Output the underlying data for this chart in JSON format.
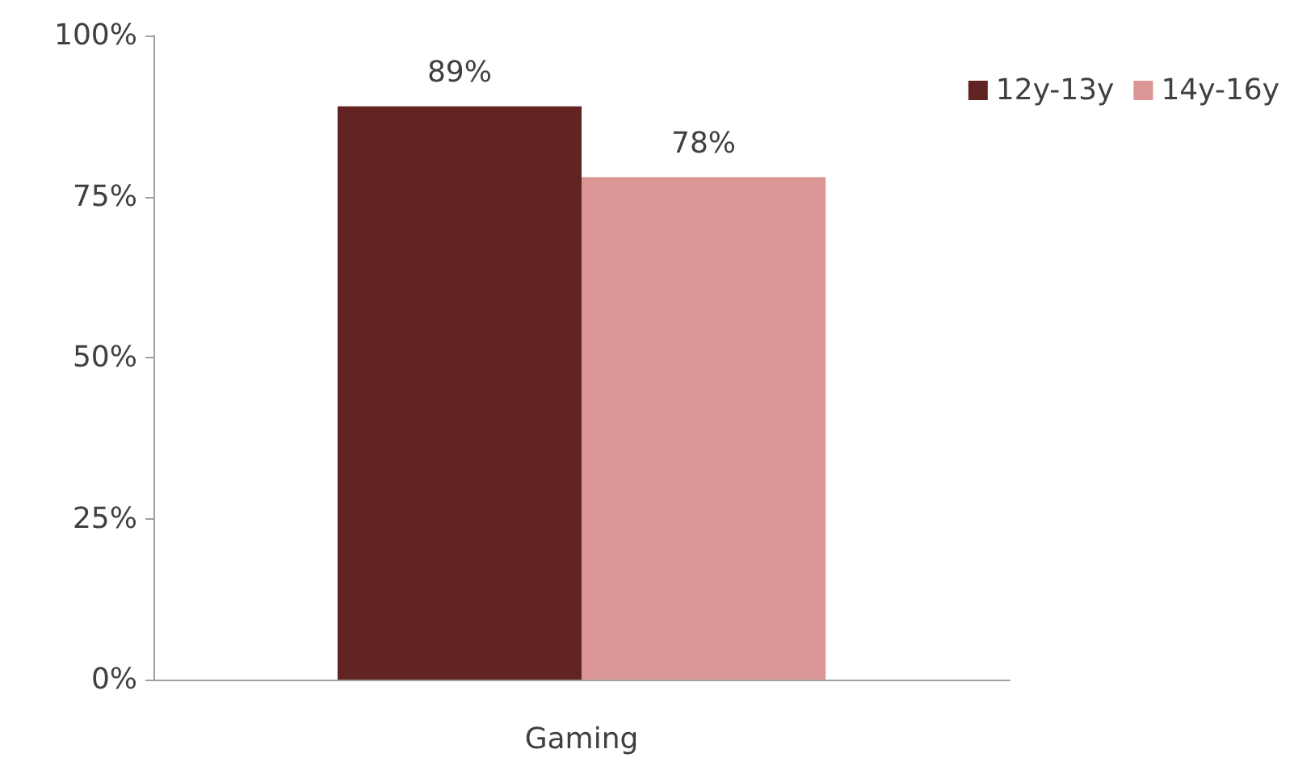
{
  "chart_data": {
    "type": "bar",
    "categories": [
      "Gaming"
    ],
    "series": [
      {
        "name": "12y-13y",
        "color": "#622423",
        "values": [
          89
        ],
        "value_labels": [
          "89%"
        ]
      },
      {
        "name": "14y-16y",
        "color": "#d99694",
        "values": [
          78
        ],
        "value_labels": [
          "78%"
        ]
      }
    ],
    "ylim": [
      0,
      100
    ],
    "yticks": [
      {
        "value": 0,
        "label": "0%"
      },
      {
        "value": 25,
        "label": "25%"
      },
      {
        "value": 50,
        "label": "50%"
      },
      {
        "value": 75,
        "label": "75%"
      },
      {
        "value": 100,
        "label": "100%"
      }
    ],
    "grid": false,
    "legend": "top right"
  }
}
